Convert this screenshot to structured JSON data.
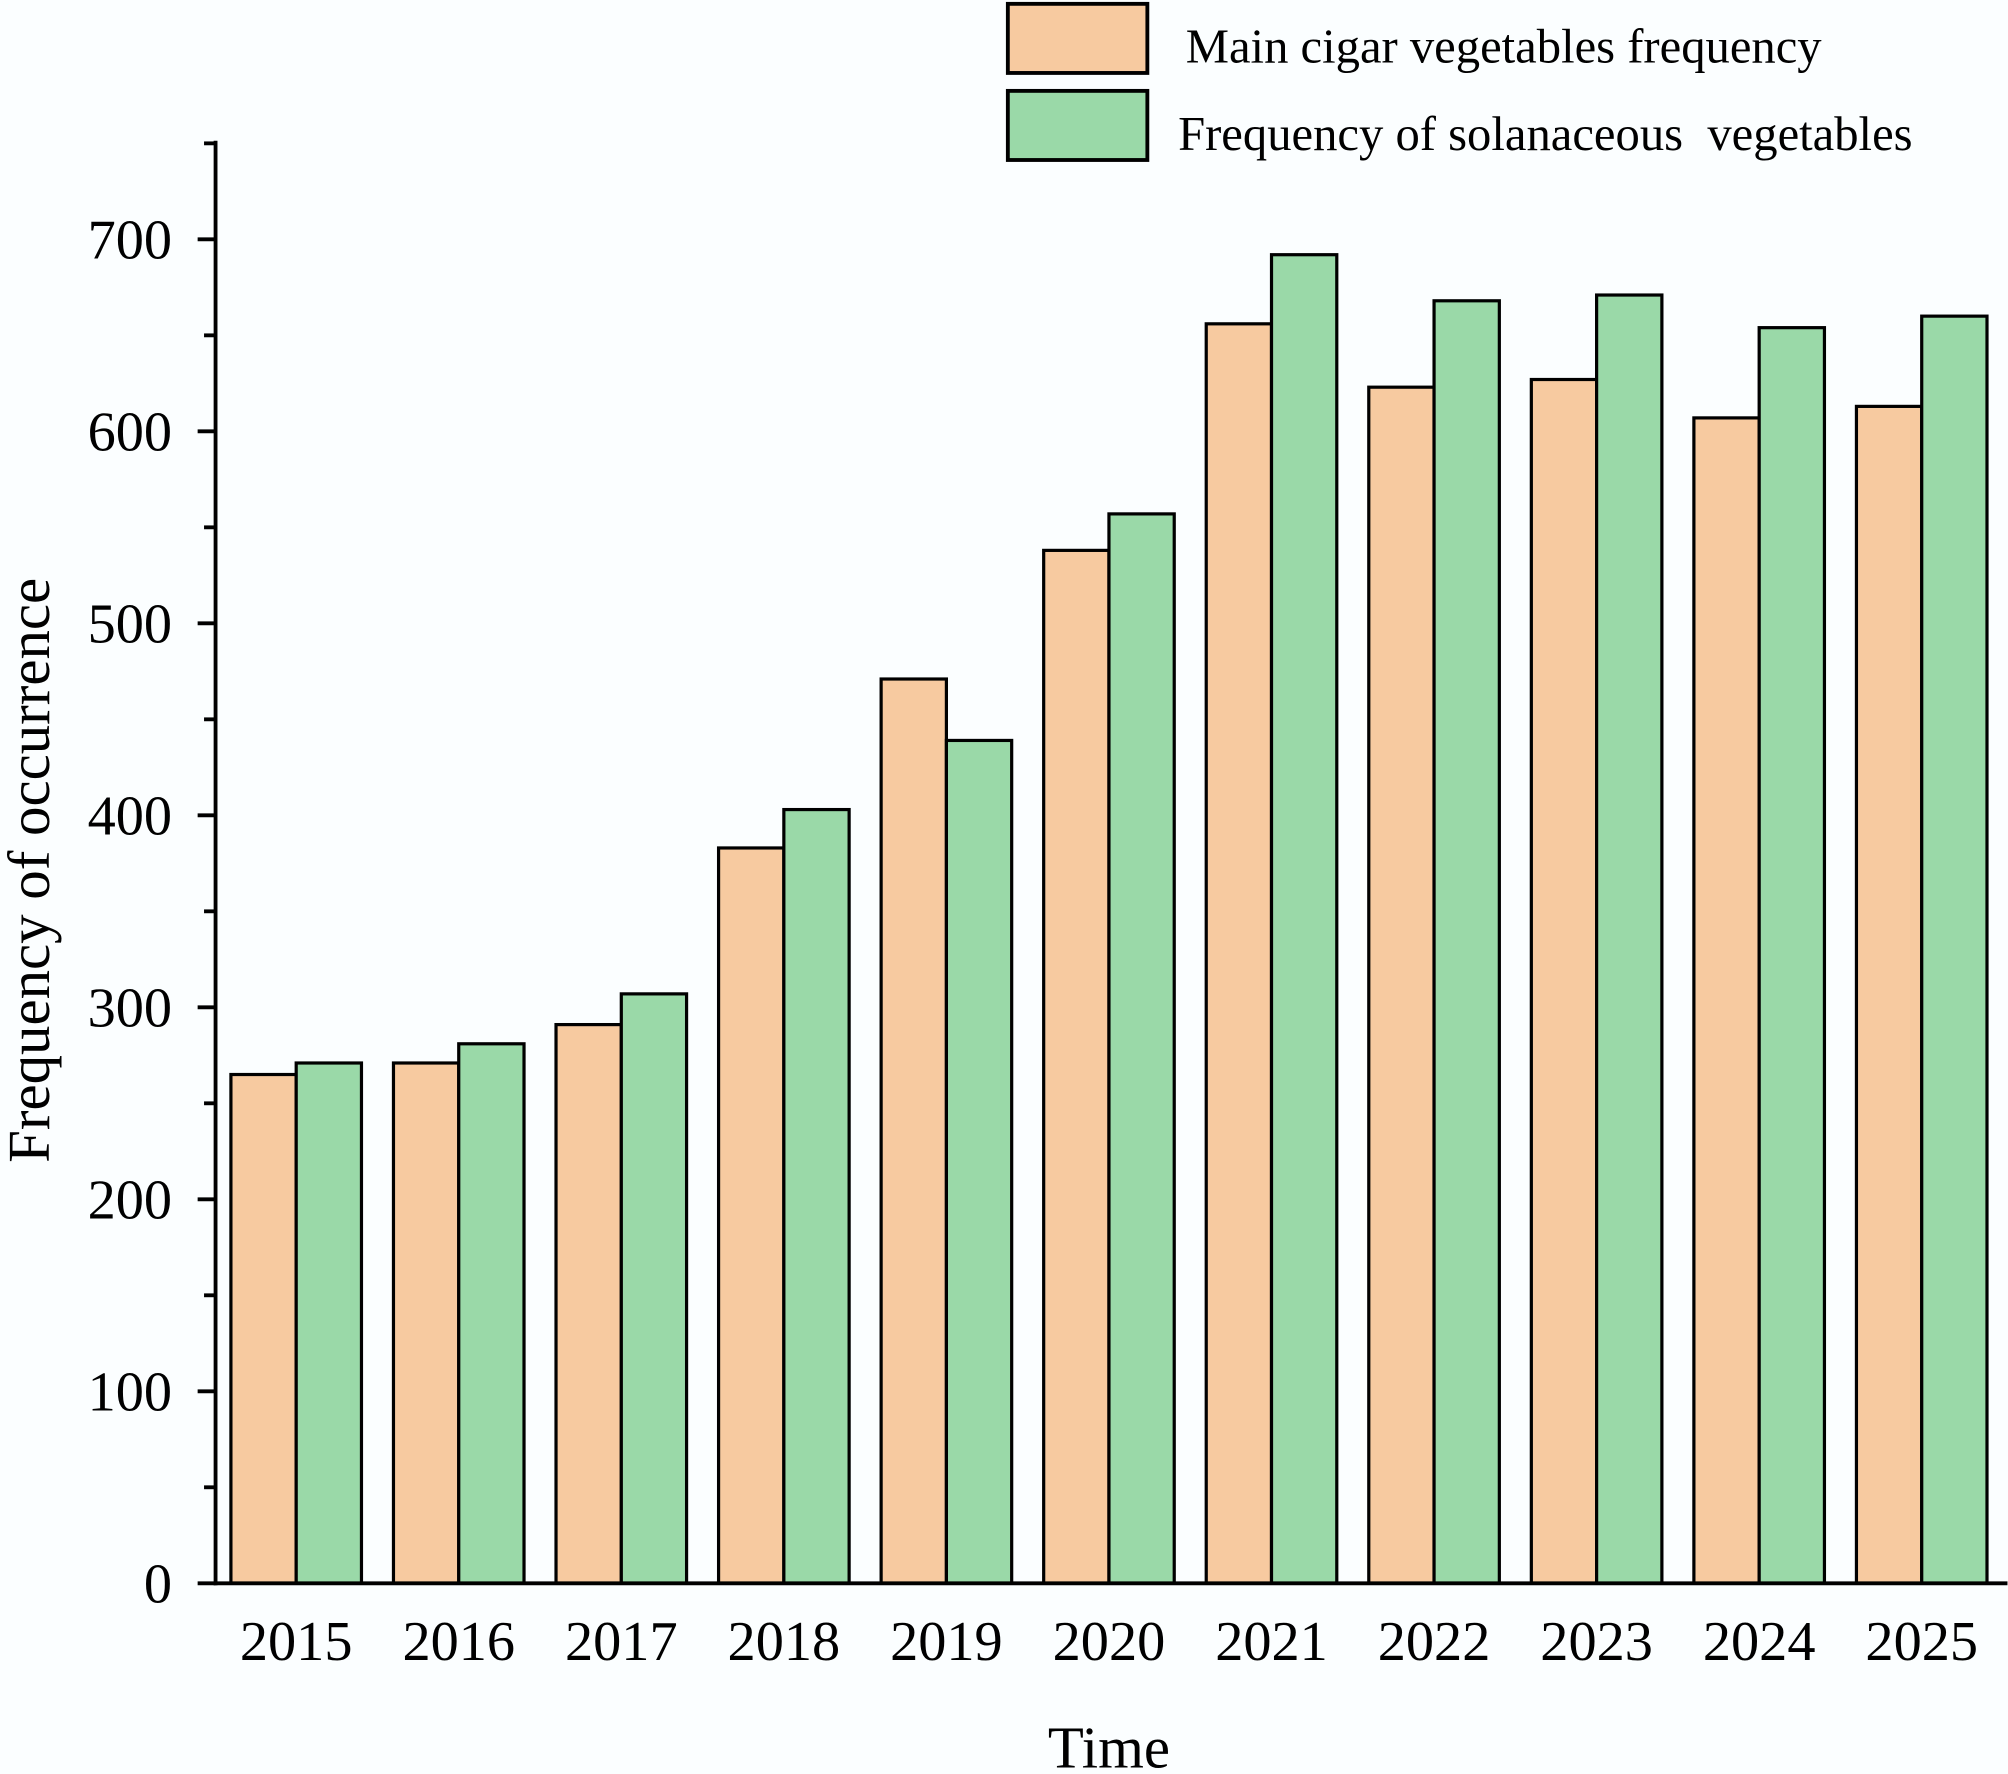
{
  "chart_data": {
    "type": "bar",
    "title": "",
    "xlabel": "Time",
    "ylabel": "Frequency of occurrence",
    "ylim": [
      0,
      750
    ],
    "yticks": [
      0,
      100,
      200,
      300,
      400,
      500,
      600,
      700
    ],
    "ytick_labels": [
      "0",
      "100",
      "200",
      "300",
      "400",
      "500",
      "600",
      "700"
    ],
    "minor_yticks_step": 50,
    "grid": false,
    "legend_position": "top-right",
    "categories": [
      "2015",
      "2016",
      "2017",
      "2018",
      "2019",
      "2020",
      "2021",
      "2022",
      "2023",
      "2024",
      "2025"
    ],
    "series": [
      {
        "name": "Main cigar vegetables frequency",
        "color": "#f7caa0",
        "values": [
          265,
          271,
          291,
          383,
          471,
          538,
          656,
          623,
          627,
          607,
          613
        ]
      },
      {
        "name": "Frequency of solanaceous  vegetables",
        "color": "#9ad9a8",
        "values": [
          271,
          281,
          307,
          403,
          439,
          557,
          692,
          668,
          671,
          654,
          660
        ]
      }
    ]
  }
}
